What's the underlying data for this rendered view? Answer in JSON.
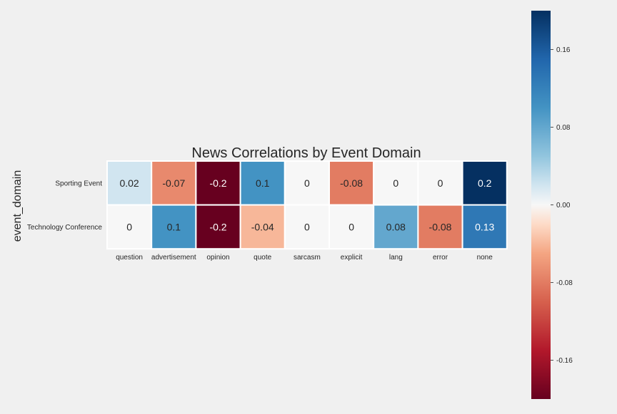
{
  "chart_data": {
    "type": "heatmap",
    "title": "News Correlations by Event Domain",
    "ylabel": "event_domain",
    "xlabel": "",
    "x": [
      "question",
      "advertisement",
      "opinion",
      "quote",
      "sarcasm",
      "explicit",
      "lang",
      "error",
      "none"
    ],
    "y": [
      "Sporting Event",
      "Technology Conference"
    ],
    "values": [
      [
        0.02,
        -0.07,
        -0.2,
        0.1,
        0,
        -0.08,
        0,
        0,
        0.2
      ],
      [
        0,
        0.1,
        -0.2,
        -0.04,
        0,
        0,
        0.08,
        -0.08,
        0.13
      ]
    ],
    "value_labels": [
      [
        "0.02",
        "-0.07",
        "-0.2",
        "0.1",
        "0",
        "-0.08",
        "0",
        "0",
        "0.2"
      ],
      [
        "0",
        "0.1",
        "-0.2",
        "-0.04",
        "0",
        "0",
        "0.08",
        "-0.08",
        "0.13"
      ]
    ],
    "colorbar": {
      "min": -0.2,
      "max": 0.2,
      "ticks": [
        0.16,
        0.08,
        0.0,
        -0.08,
        -0.16
      ],
      "tick_labels": [
        "0.16",
        "0.08",
        "0.00",
        "-0.08",
        "-0.16"
      ],
      "colormap": "RdBu"
    },
    "grid": false
  }
}
